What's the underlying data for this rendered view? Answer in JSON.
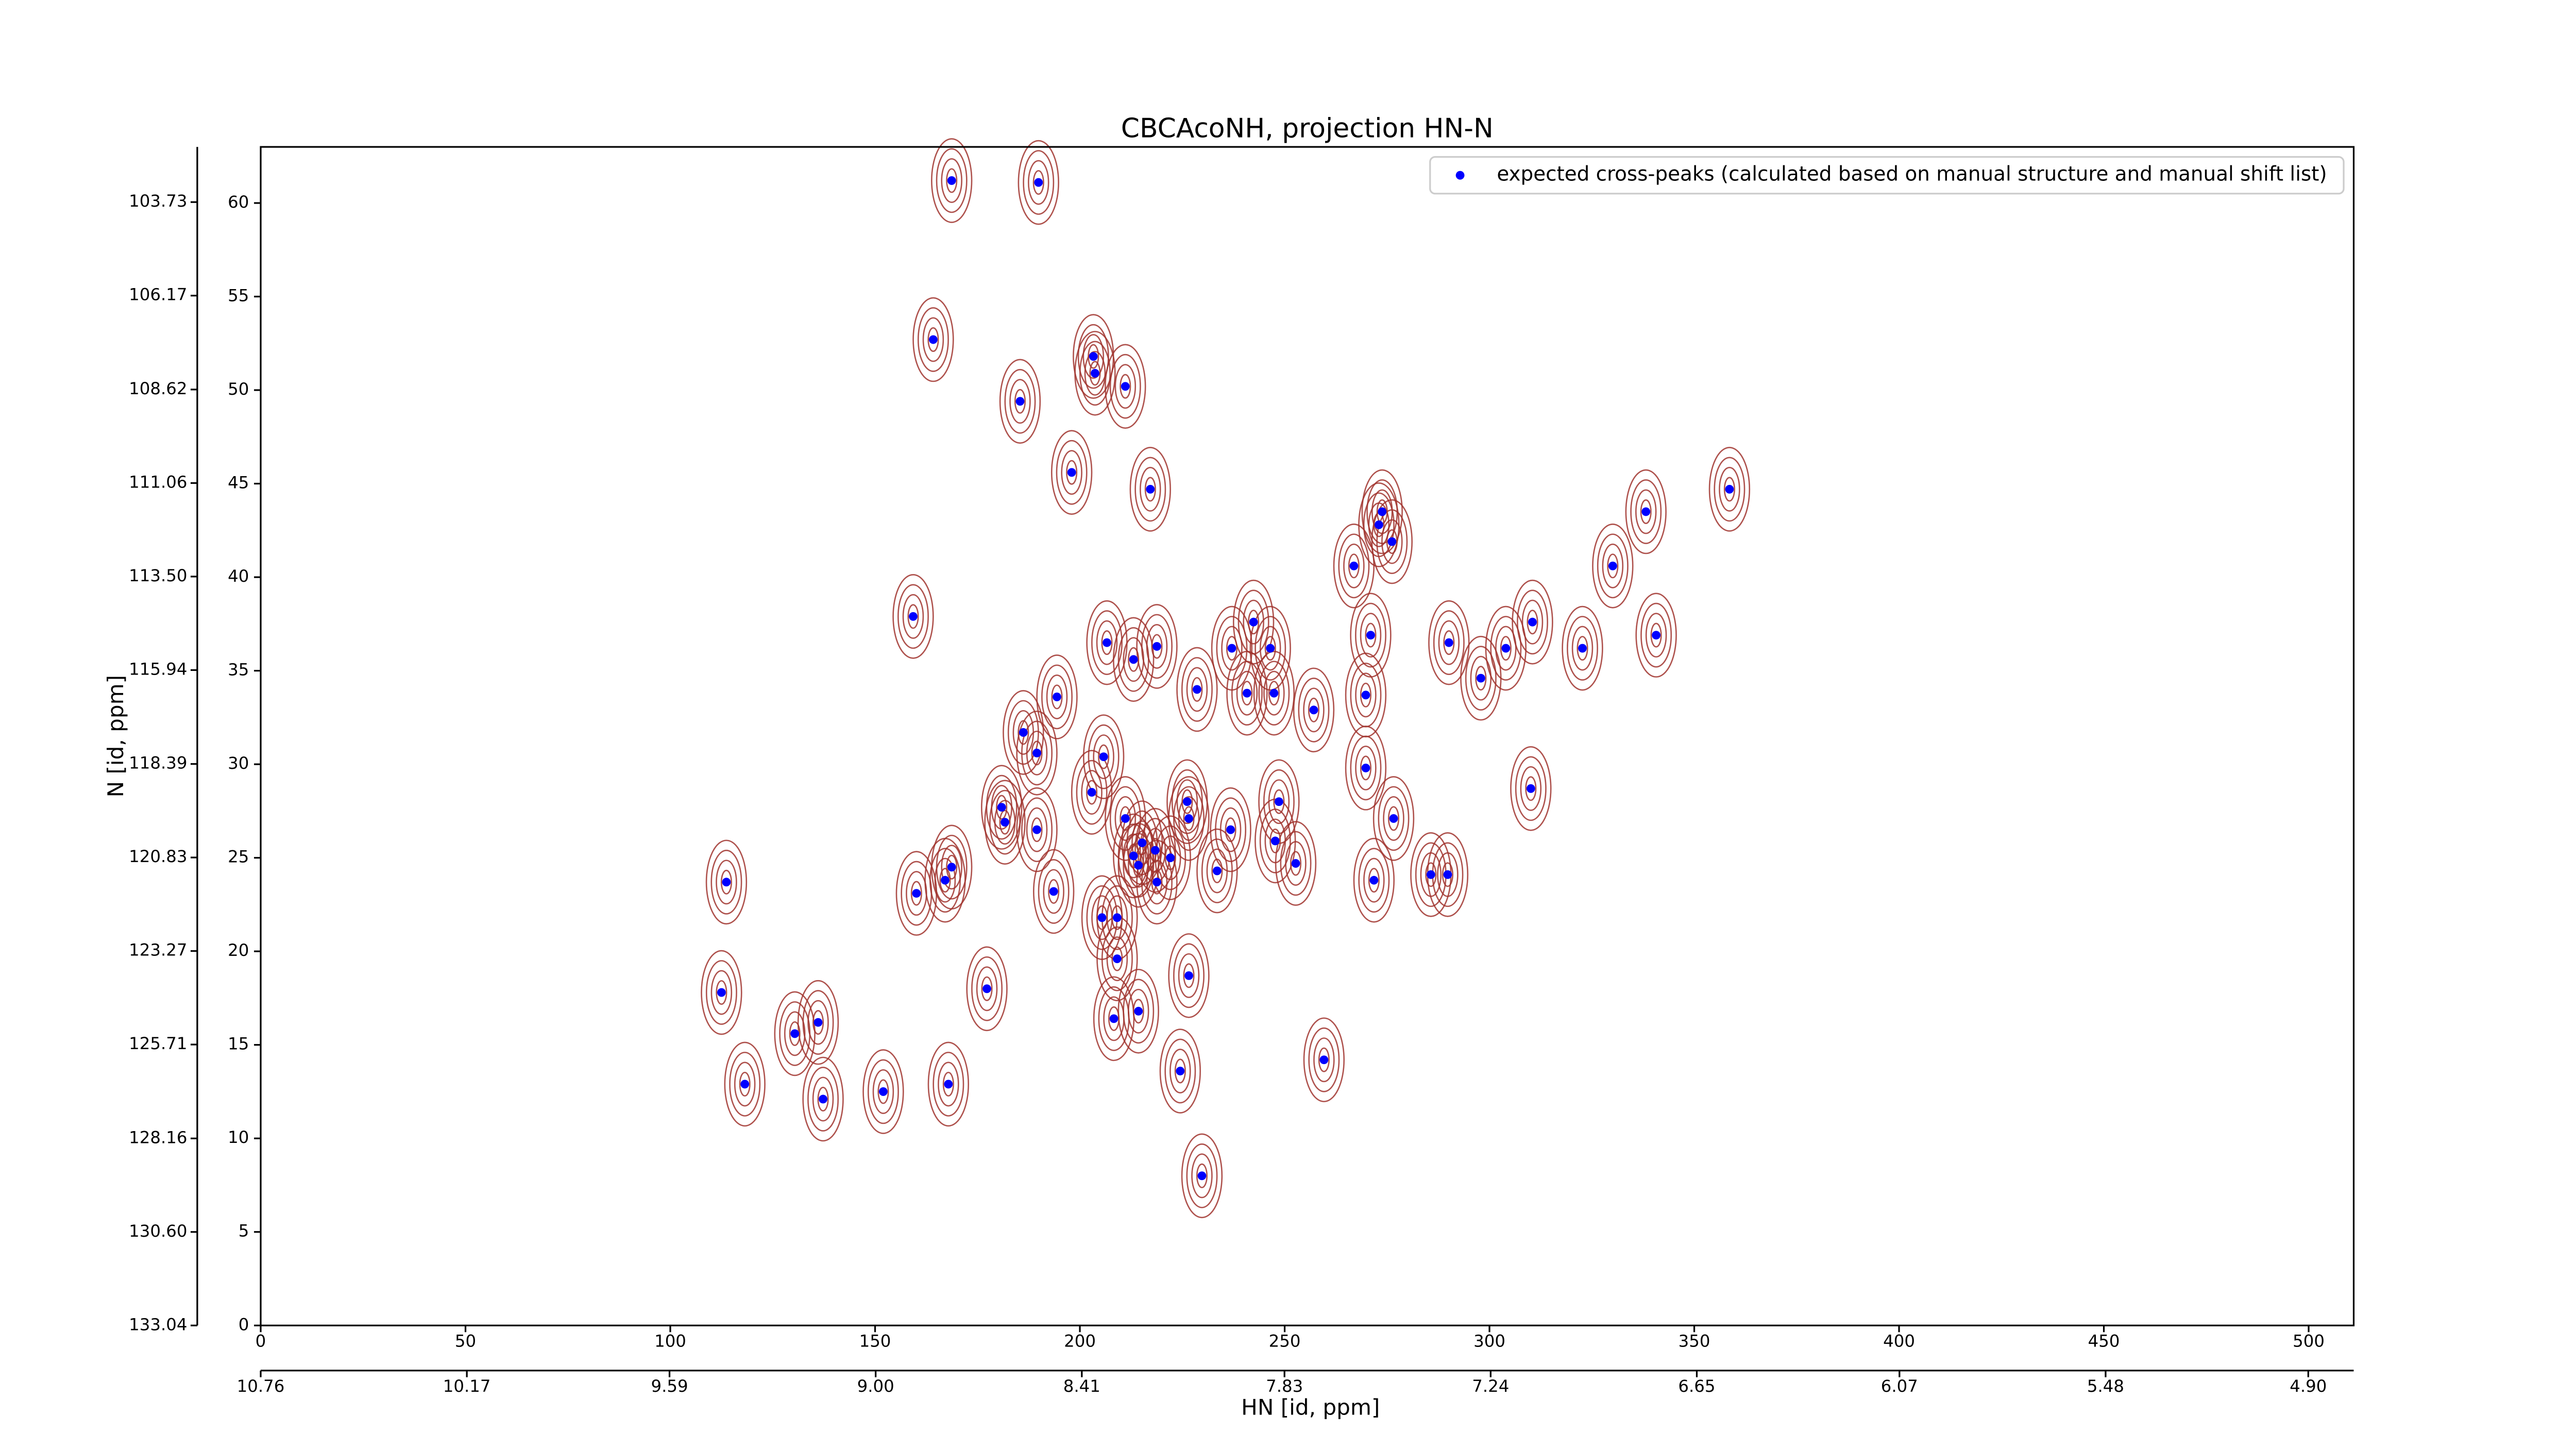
{
  "chart_data": {
    "type": "scatter",
    "title": "CBCAcoNH, projection HN-N",
    "x_label": "HN [id, ppm]",
    "y_label": "N [id, ppm]",
    "xlim": [
      0,
      511
    ],
    "ylim": [
      0,
      63
    ],
    "xticks": [
      0,
      50,
      100,
      150,
      200,
      250,
      300,
      350,
      400,
      450,
      500
    ],
    "yticks": [
      0,
      5,
      10,
      15,
      20,
      25,
      30,
      35,
      40,
      45,
      50,
      55,
      60
    ],
    "x2lim": [
      10.76,
      4.77
    ],
    "x2ticks": [
      10.76,
      10.17,
      9.59,
      {
        "value": 9,
        "label": "9.00"
      },
      8.41,
      7.83,
      7.24,
      6.65,
      6.07,
      5.48,
      {
        "value": 4.9,
        "label": "4.90"
      }
    ],
    "y2lim": [
      133.04,
      102.29
    ],
    "y2ticks": [
      133.04,
      {
        "value": 130.6,
        "label": "130.60"
      },
      128.16,
      125.71,
      123.27,
      120.83,
      118.39,
      115.94,
      {
        "value": 113.5,
        "label": "113.50"
      },
      111.06,
      108.62,
      106.17,
      103.73
    ],
    "legend": "upper right",
    "contour_color": "#a0322d",
    "series": [
      {
        "name": "expected cross-peaks (calculated based on manual structure and manual shift list)",
        "color": "#0000ff",
        "x": [
          168.7,
          189.9,
          164.2,
          185.4,
          203.3,
          203.7,
          211.1,
          198.0,
          217.2,
          273.8,
          273.0,
          276.2,
          266.9,
          338.2,
          358.6,
          330.1,
          159.3,
          271.0,
          340.7,
          310.5,
          322.7,
          206.6,
          218.8,
          213.1,
          242.4,
          237.1,
          246.5,
          290.1,
          304.0,
          297.9,
          228.6,
          240.8,
          247.4,
          194.4,
          257.1,
          269.8,
          186.2,
          189.5,
          205.8,
          269.8,
          310.1,
          202.9,
          180.9,
          226.2,
          248.6,
          181.7,
          189.5,
          211.1,
          226.6,
          276.6,
          236.8,
          215.2,
          218.4,
          247.7,
          213.1,
          222.1,
          214.3,
          252.7,
          233.5,
          168.7,
          167.1,
          113.7,
          271.8,
          285.7,
          289.8,
          218.8,
          160.1,
          193.6,
          205.4,
          209.1,
          209.1,
          226.6,
          177.3,
          112.5,
          208.3,
          214.3,
          136.1,
          130.4,
          259.6,
          224.5,
          118.2,
          167.9,
          152.0,
          137.3,
          229.8
        ],
        "values": [
          61.2,
          61.1,
          52.7,
          49.4,
          51.8,
          50.9,
          50.2,
          45.6,
          44.7,
          43.5,
          42.8,
          41.9,
          40.6,
          43.5,
          44.7,
          40.6,
          37.9,
          36.9,
          36.9,
          37.6,
          36.2,
          36.5,
          36.3,
          35.6,
          37.6,
          36.2,
          36.2,
          36.5,
          36.2,
          34.6,
          34.0,
          33.8,
          33.8,
          33.6,
          32.9,
          33.7,
          31.7,
          30.6,
          30.4,
          29.8,
          28.7,
          28.5,
          27.7,
          28.0,
          28.0,
          26.9,
          26.5,
          27.1,
          27.1,
          27.1,
          26.5,
          25.8,
          25.4,
          25.9,
          25.1,
          25.0,
          24.6,
          24.7,
          24.3,
          24.5,
          23.8,
          23.7,
          23.8,
          24.1,
          24.1,
          23.7,
          23.1,
          23.2,
          21.8,
          21.8,
          19.6,
          18.7,
          18.0,
          17.8,
          16.4,
          16.8,
          16.2,
          15.6,
          14.2,
          13.6,
          12.9,
          12.9,
          12.5,
          12.1,
          8.0
        ]
      }
    ]
  }
}
